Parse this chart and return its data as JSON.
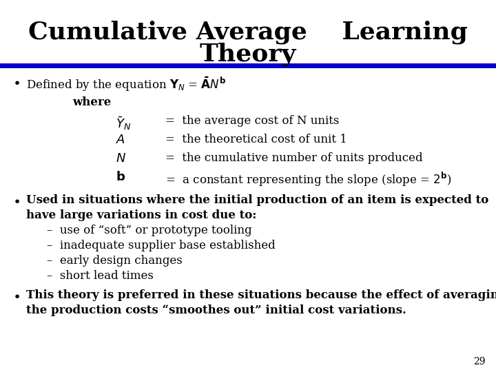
{
  "title_line1": "Cumulative Average    Learning",
  "title_line2": "Theory",
  "title_fontsize": 26,
  "title_color": "#000000",
  "bg_color": "#ffffff",
  "rule_color": "#0000cc",
  "body_fontsize": 12,
  "page_number": "29",
  "bullet1_intro": "Defined by the equation $Y_{N}$ = $\\bar{A}N^{b}$",
  "where_label": "where",
  "row_yn_def": "=  the average cost of N units",
  "row_a_def": "=  the theoretical cost of unit 1",
  "row_n_def": "=  the cumulative number of units produced",
  "row_b_def": "=  a constant representing the slope (slope = $2^{b}$)",
  "bullet2_line1": "Used in situations where the initial production of an item is expected to",
  "bullet2_line2": "have large variations in cost due to:",
  "sub1": "–  use of “soft” or prototype tooling",
  "sub2": "–  inadequate supplier base established",
  "sub3": "–  early design changes",
  "sub4": "–  short lead times",
  "bullet3_line1": "This theory is preferred in these situations because the effect of averaging",
  "bullet3_line2": "the production costs “smoothes out” initial cost variations."
}
